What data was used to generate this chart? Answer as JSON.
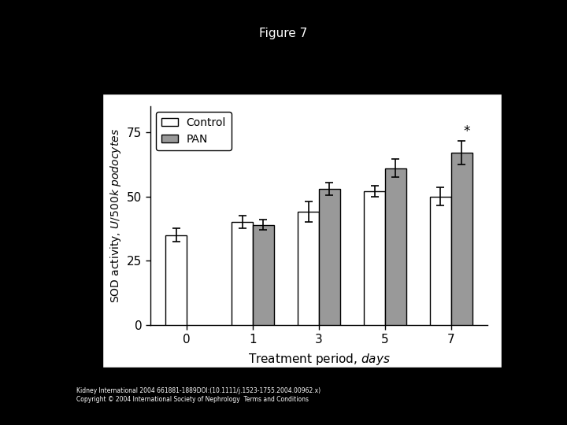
{
  "title": "Figure 7",
  "xlabel": "Treatment period, $\\it{days}$",
  "ylabel": "SOD activity, $\\it{U/500k\\ podocytes}$",
  "days": [
    0,
    1,
    3,
    5,
    7
  ],
  "control_values": [
    35,
    40,
    44,
    52,
    50
  ],
  "control_errors": [
    2.5,
    2.5,
    4,
    2.0,
    3.5
  ],
  "pan_values": [
    null,
    39,
    53,
    61,
    67
  ],
  "pan_errors": [
    null,
    2.0,
    2.5,
    3.5,
    4.5
  ],
  "control_color": "#ffffff",
  "pan_color": "#999999",
  "bar_edge_color": "#000000",
  "bar_width": 0.32,
  "ylim": [
    0,
    85
  ],
  "yticks": [
    0,
    25,
    50,
    75
  ],
  "xtick_labels": [
    "0",
    "1",
    "3",
    "5",
    "7"
  ],
  "star_annotation": "*",
  "background_color": "#ffffff",
  "figure_bg": "#000000",
  "footer_text1": "Kidney International 2004 661881-1889DOI:(10.1111/j.1523-1755.2004.00962.x)",
  "footer_text2": "Copyright © 2004 International Society of Nephrology  Terms and Conditions"
}
